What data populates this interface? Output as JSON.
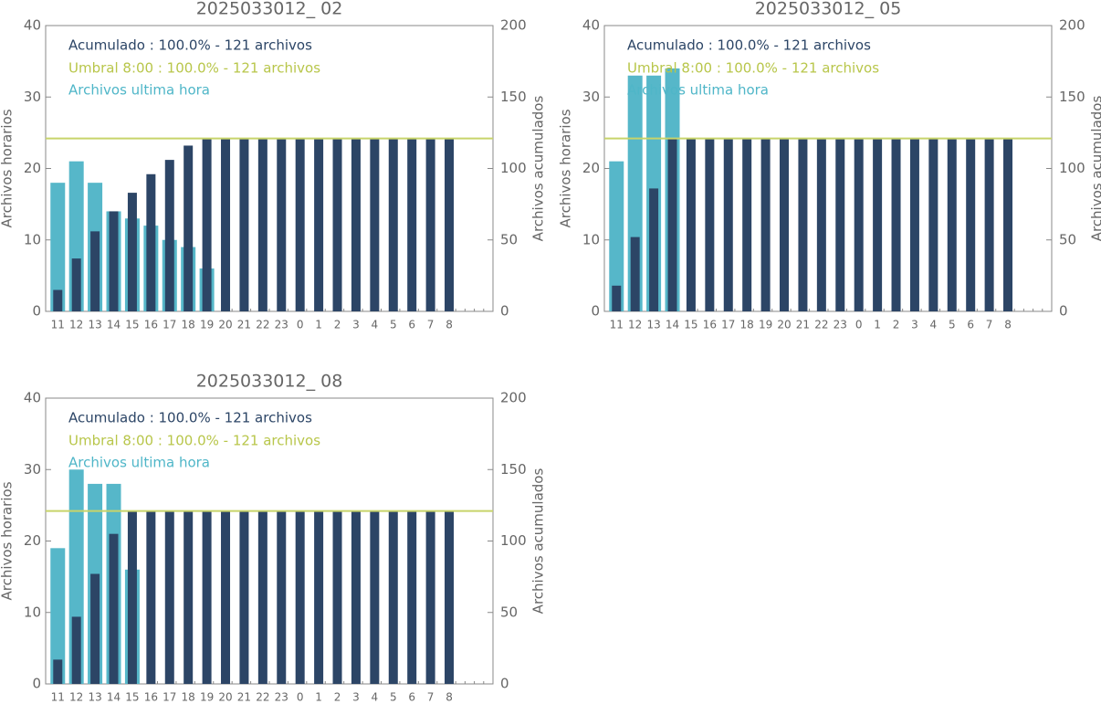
{
  "chart_data": [
    {
      "type": "bar",
      "title": "2025033012_ 02",
      "categories": [
        "11",
        "12",
        "13",
        "14",
        "15",
        "16",
        "17",
        "18",
        "19",
        "20",
        "21",
        "22",
        "23",
        "0",
        "1",
        "2",
        "3",
        "4",
        "5",
        "6",
        "7",
        "8"
      ],
      "series": [
        {
          "name": "Archivos ultima hora",
          "color": "#56b7c9",
          "values": [
            18,
            21,
            18,
            14,
            13,
            12,
            10,
            9,
            6,
            0,
            0,
            0,
            0,
            0,
            0,
            0,
            0,
            0,
            0,
            0,
            0,
            0
          ]
        },
        {
          "name": "Acumulado : 100.0% - 121 archivos",
          "color": "#2c4566",
          "axis": "y2",
          "values": [
            15,
            37,
            56,
            70,
            83,
            96,
            106,
            116,
            121,
            121,
            121,
            121,
            121,
            121,
            121,
            121,
            121,
            121,
            121,
            121,
            121,
            121
          ]
        }
      ],
      "threshold": {
        "name": "Umbral 8:00 : 100.0% - 121 archivos",
        "color": "#c8d46a",
        "value": 121
      },
      "ylabel": "Archivos horarios",
      "y2label": "Archivos acumulados",
      "ylim": [
        0,
        40
      ],
      "yticks": [
        0,
        10,
        20,
        30,
        40
      ],
      "y2lim": [
        0,
        200
      ],
      "y2ticks": [
        0,
        50,
        100,
        150,
        200
      ]
    },
    {
      "type": "bar",
      "title": "2025033012_ 05",
      "categories": [
        "11",
        "12",
        "13",
        "14",
        "15",
        "16",
        "17",
        "18",
        "19",
        "20",
        "21",
        "22",
        "23",
        "0",
        "1",
        "2",
        "3",
        "4",
        "5",
        "6",
        "7",
        "8"
      ],
      "series": [
        {
          "name": "Archivos ultima hora",
          "color": "#56b7c9",
          "values": [
            21,
            33,
            33,
            34,
            0,
            0,
            0,
            0,
            0,
            0,
            0,
            0,
            0,
            0,
            0,
            0,
            0,
            0,
            0,
            0,
            0,
            0
          ]
        },
        {
          "name": "Acumulado : 100.0% - 121 archivos",
          "color": "#2c4566",
          "axis": "y2",
          "values": [
            18,
            52,
            86,
            121,
            121,
            121,
            121,
            121,
            121,
            121,
            121,
            121,
            121,
            121,
            121,
            121,
            121,
            121,
            121,
            121,
            121,
            121
          ]
        }
      ],
      "threshold": {
        "name": "Umbral 8:00 : 100.0% - 121 archivos",
        "color": "#c8d46a",
        "value": 121
      },
      "ylabel": "Archivos horarios",
      "y2label": "Archivos acumulados",
      "ylim": [
        0,
        40
      ],
      "yticks": [
        0,
        10,
        20,
        30,
        40
      ],
      "y2lim": [
        0,
        200
      ],
      "y2ticks": [
        0,
        50,
        100,
        150,
        200
      ]
    },
    {
      "type": "bar",
      "title": "2025033012_ 08",
      "categories": [
        "11",
        "12",
        "13",
        "14",
        "15",
        "16",
        "17",
        "18",
        "19",
        "20",
        "21",
        "22",
        "23",
        "0",
        "1",
        "2",
        "3",
        "4",
        "5",
        "6",
        "7",
        "8"
      ],
      "series": [
        {
          "name": "Archivos ultima hora",
          "color": "#56b7c9",
          "values": [
            19,
            30,
            28,
            28,
            16,
            0,
            0,
            0,
            0,
            0,
            0,
            0,
            0,
            0,
            0,
            0,
            0,
            0,
            0,
            0,
            0,
            0
          ]
        },
        {
          "name": "Acumulado : 100.0% - 121 archivos",
          "color": "#2c4566",
          "axis": "y2",
          "values": [
            17,
            47,
            77,
            105,
            121,
            121,
            121,
            121,
            121,
            121,
            121,
            121,
            121,
            121,
            121,
            121,
            121,
            121,
            121,
            121,
            121,
            121
          ]
        }
      ],
      "threshold": {
        "name": "Umbral 8:00 : 100.0% - 121 archivos",
        "color": "#c8d46a",
        "value": 121
      },
      "ylabel": "Archivos horarios",
      "y2label": "Archivos acumulados",
      "ylim": [
        0,
        40
      ],
      "yticks": [
        0,
        10,
        20,
        30,
        40
      ],
      "y2lim": [
        0,
        200
      ],
      "y2ticks": [
        0,
        50,
        100,
        150,
        200
      ]
    }
  ]
}
